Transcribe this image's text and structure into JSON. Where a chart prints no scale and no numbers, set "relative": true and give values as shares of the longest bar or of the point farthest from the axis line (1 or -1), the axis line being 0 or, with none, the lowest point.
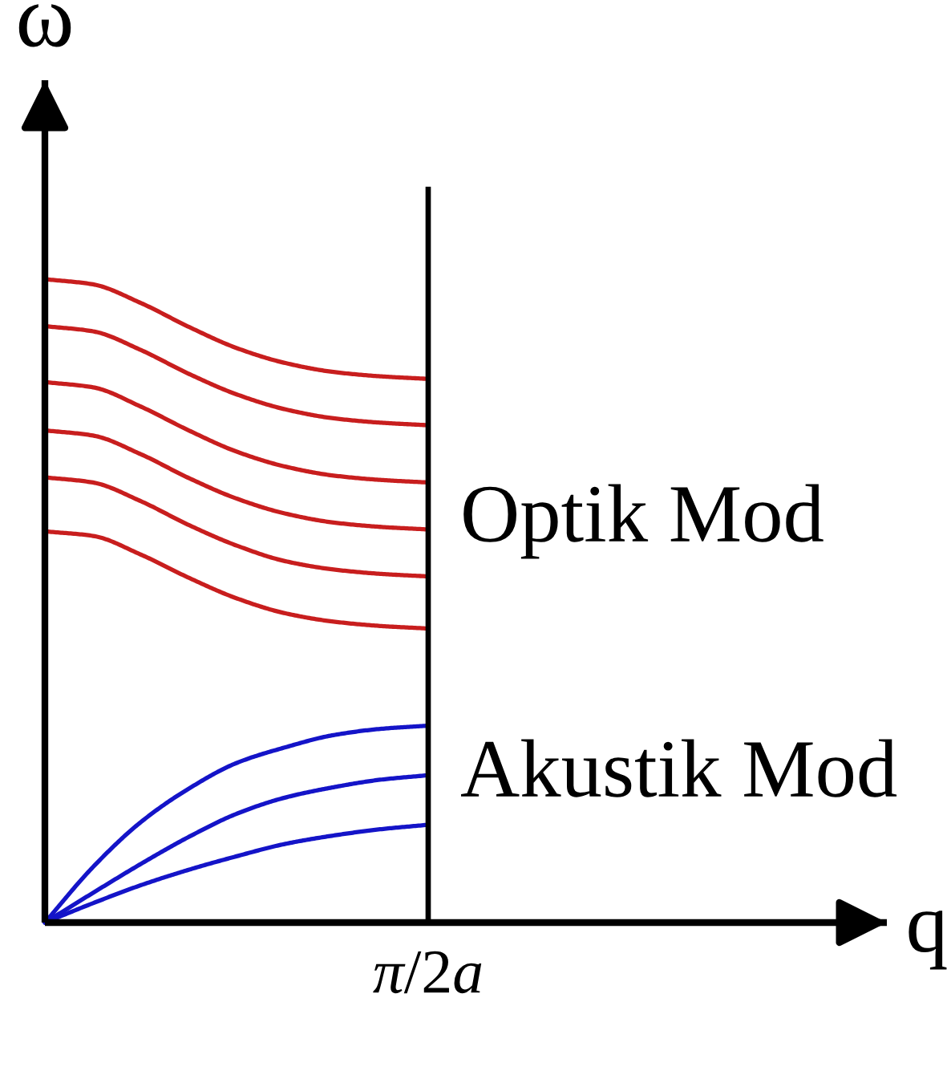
{
  "chart_data": {
    "type": "line",
    "relative": true,
    "ylabel": "ω",
    "categories": [
      null,
      null,
      null,
      null,
      null,
      null,
      null,
      null,
      null
    ],
    "series": [
      {
        "color": "#c81e1e",
        "values": [
          1.0,
          0.992,
          0.963,
          0.926,
          0.893,
          0.87,
          0.856,
          0.849,
          0.845
        ]
      },
      {
        "color": "#c81e1e",
        "values": [
          0.927,
          0.919,
          0.89,
          0.853,
          0.821,
          0.798,
          0.784,
          0.777,
          0.773
        ]
      },
      {
        "color": "#c81e1e",
        "values": [
          0.84,
          0.832,
          0.802,
          0.765,
          0.732,
          0.709,
          0.695,
          0.688,
          0.684
        ]
      },
      {
        "color": "#c81e1e",
        "values": [
          0.765,
          0.757,
          0.728,
          0.691,
          0.659,
          0.636,
          0.622,
          0.615,
          0.611
        ]
      },
      {
        "color": "#c81e1e",
        "values": [
          0.692,
          0.684,
          0.655,
          0.618,
          0.586,
          0.562,
          0.549,
          0.542,
          0.538
        ]
      },
      {
        "color": "#c81e1e",
        "values": [
          0.608,
          0.601,
          0.572,
          0.536,
          0.504,
          0.481,
          0.468,
          0.461,
          0.457
        ]
      },
      {
        "color": "#1414c8",
        "values": [
          0,
          0.086,
          0.156,
          0.208,
          0.248,
          0.272,
          0.291,
          0.301,
          0.306
        ]
      },
      {
        "color": "#1414c8",
        "values": [
          0,
          0.046,
          0.091,
          0.133,
          0.169,
          0.194,
          0.21,
          0.222,
          0.229
        ]
      },
      {
        "color": "#1414c8",
        "values": [
          0,
          0.03,
          0.058,
          0.082,
          0.103,
          0.122,
          0.135,
          0.145,
          0.152
        ]
      }
    ],
    "annotations": [
      "Optik Mod",
      "Akustik Mod",
      "π/2a",
      "q"
    ]
  }
}
